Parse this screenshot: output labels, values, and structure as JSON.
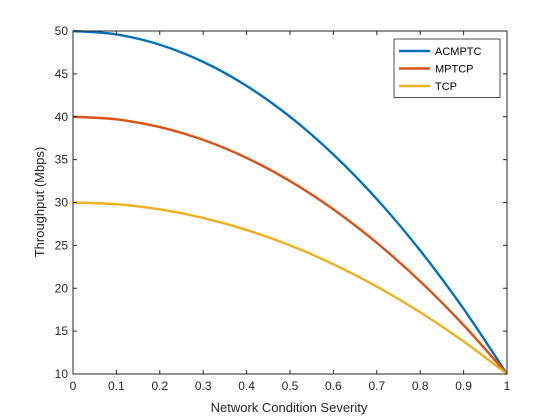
{
  "chart_data": {
    "type": "line",
    "title": "",
    "xlabel": "Network Condition Severity",
    "ylabel": "Throughput (Mbps)",
    "xlim": [
      0,
      1
    ],
    "ylim": [
      10,
      50
    ],
    "xticks": [
      "0",
      "0.1",
      "0.2",
      "0.3",
      "0.4",
      "0.5",
      "0.6",
      "0.7",
      "0.8",
      "0.9",
      "1"
    ],
    "yticks": [
      "10",
      "15",
      "20",
      "25",
      "30",
      "35",
      "40",
      "45",
      "50"
    ],
    "grid": false,
    "legend_position": "top-right",
    "x": [
      0,
      0.1,
      0.2,
      0.3,
      0.4,
      0.5,
      0.6,
      0.7,
      0.8,
      0.9,
      1.0
    ],
    "series": [
      {
        "name": "ACMPTC",
        "color": "#0072BD",
        "values": [
          50.0,
          49.6,
          48.4,
          46.4,
          43.6,
          40.0,
          35.6,
          30.4,
          24.4,
          17.6,
          10.0
        ]
      },
      {
        "name": "MPTCP",
        "color": "#D95319",
        "values": [
          40.0,
          39.7,
          38.8,
          37.3,
          35.2,
          32.5,
          29.2,
          25.3,
          20.8,
          15.7,
          10.0
        ]
      },
      {
        "name": "TCP",
        "color": "#EDB120",
        "values": [
          30.0,
          29.8,
          29.2,
          28.2,
          26.8,
          25.0,
          22.8,
          20.2,
          17.2,
          13.8,
          10.0
        ]
      }
    ]
  }
}
